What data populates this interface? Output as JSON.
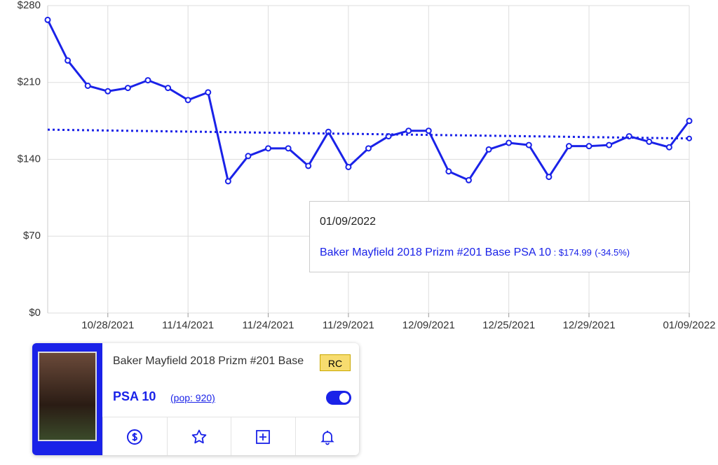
{
  "chart_data": {
    "type": "line",
    "categories": [
      null,
      null,
      null,
      "10/28/2021",
      null,
      null,
      null,
      "11/14/2021",
      null,
      null,
      null,
      "11/24/2021",
      null,
      null,
      null,
      "11/29/2021",
      null,
      null,
      null,
      "12/09/2021",
      null,
      null,
      null,
      "12/25/2021",
      null,
      null,
      null,
      "12/29/2021",
      null,
      null,
      null,
      null,
      "01/09/2022"
    ],
    "series": [
      {
        "name": "Baker Mayfield 2018 Prizm #201 Base PSA 10",
        "color": "#1a22e8",
        "values": [
          267,
          230,
          207,
          202,
          205,
          212,
          205,
          194,
          201,
          120,
          143,
          150,
          150,
          134,
          165,
          133,
          150,
          161,
          166,
          166,
          129,
          121,
          149,
          155,
          153,
          124,
          152,
          152,
          153,
          161,
          156,
          151,
          174.99
        ]
      }
    ],
    "trend": [
      167,
      159
    ],
    "ylim": [
      0,
      280
    ],
    "yticks": [
      {
        "value": 0,
        "label": "$0"
      },
      {
        "value": 70,
        "label": "$70"
      },
      {
        "value": 140,
        "label": "$140"
      },
      {
        "value": 210,
        "label": "$210"
      },
      {
        "value": 280,
        "label": "$280"
      }
    ],
    "grid": true
  },
  "tooltip": {
    "date": "01/09/2022",
    "name": "Baker Mayfield 2018 Prizm #201 Base PSA 10",
    "separator": " : ",
    "price": "$174.99",
    "change": "(-34.5%)"
  },
  "card": {
    "title": "Baker Mayfield 2018 Prizm #201 Base",
    "badge": "RC",
    "grade": "PSA 10",
    "pop": "(pop: 920)"
  }
}
